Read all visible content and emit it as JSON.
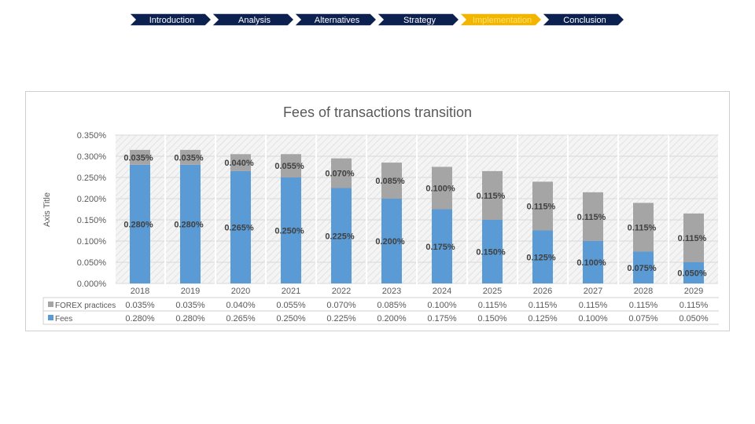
{
  "nav": {
    "steps": [
      {
        "label": "Introduction",
        "active": false
      },
      {
        "label": "Analysis",
        "active": false
      },
      {
        "label": "Alternatives",
        "active": false
      },
      {
        "label": "Strategy",
        "active": false
      },
      {
        "label": "Implementation",
        "active": true
      },
      {
        "label": "Conclusion",
        "active": false
      }
    ],
    "colors": {
      "fill": "#0d2150",
      "active_fill": "#f2b600",
      "text": "#ffffff",
      "active_text": "#ffe070"
    }
  },
  "chart_data": {
    "type": "bar",
    "stacked": true,
    "title": "Fees of transactions transition",
    "xlabel": "",
    "ylabel": "Axis Title",
    "ylim": [
      0,
      0.35
    ],
    "yticks": [
      "0.000%",
      "0.050%",
      "0.100%",
      "0.150%",
      "0.200%",
      "0.250%",
      "0.300%",
      "0.350%"
    ],
    "grid": true,
    "legend": "bottom data table",
    "categories": [
      "2018",
      "2019",
      "2020",
      "2021",
      "2022",
      "2023",
      "2024",
      "2025",
      "2026",
      "2027",
      "2028",
      "2029"
    ],
    "series": [
      {
        "name": "Fees",
        "color": "#5b9bd5",
        "values": [
          0.28,
          0.28,
          0.265,
          0.25,
          0.225,
          0.2,
          0.175,
          0.15,
          0.125,
          0.1,
          0.075,
          0.05
        ],
        "labels": [
          "0.280%",
          "0.280%",
          "0.265%",
          "0.250%",
          "0.225%",
          "0.200%",
          "0.175%",
          "0.150%",
          "0.125%",
          "0.100%",
          "0.075%",
          "0.050%"
        ]
      },
      {
        "name": "FOREX practices",
        "color": "#a5a5a5",
        "values": [
          0.035,
          0.035,
          0.04,
          0.055,
          0.07,
          0.085,
          0.1,
          0.115,
          0.115,
          0.115,
          0.115,
          0.115
        ],
        "labels": [
          "0.035%",
          "0.035%",
          "0.040%",
          "0.055%",
          "0.070%",
          "0.085%",
          "0.100%",
          "0.115%",
          "0.115%",
          "0.115%",
          "0.115%",
          "0.115%"
        ]
      }
    ],
    "table_rows": [
      {
        "name": "FOREX practices",
        "color": "#a5a5a5",
        "values": [
          "0.035%",
          "0.035%",
          "0.040%",
          "0.055%",
          "0.070%",
          "0.085%",
          "0.100%",
          "0.115%",
          "0.115%",
          "0.115%",
          "0.115%",
          "0.115%"
        ]
      },
      {
        "name": "Fees",
        "color": "#5b9bd5",
        "values": [
          "0.280%",
          "0.280%",
          "0.265%",
          "0.250%",
          "0.225%",
          "0.200%",
          "0.175%",
          "0.150%",
          "0.125%",
          "0.100%",
          "0.075%",
          "0.050%"
        ]
      }
    ]
  }
}
